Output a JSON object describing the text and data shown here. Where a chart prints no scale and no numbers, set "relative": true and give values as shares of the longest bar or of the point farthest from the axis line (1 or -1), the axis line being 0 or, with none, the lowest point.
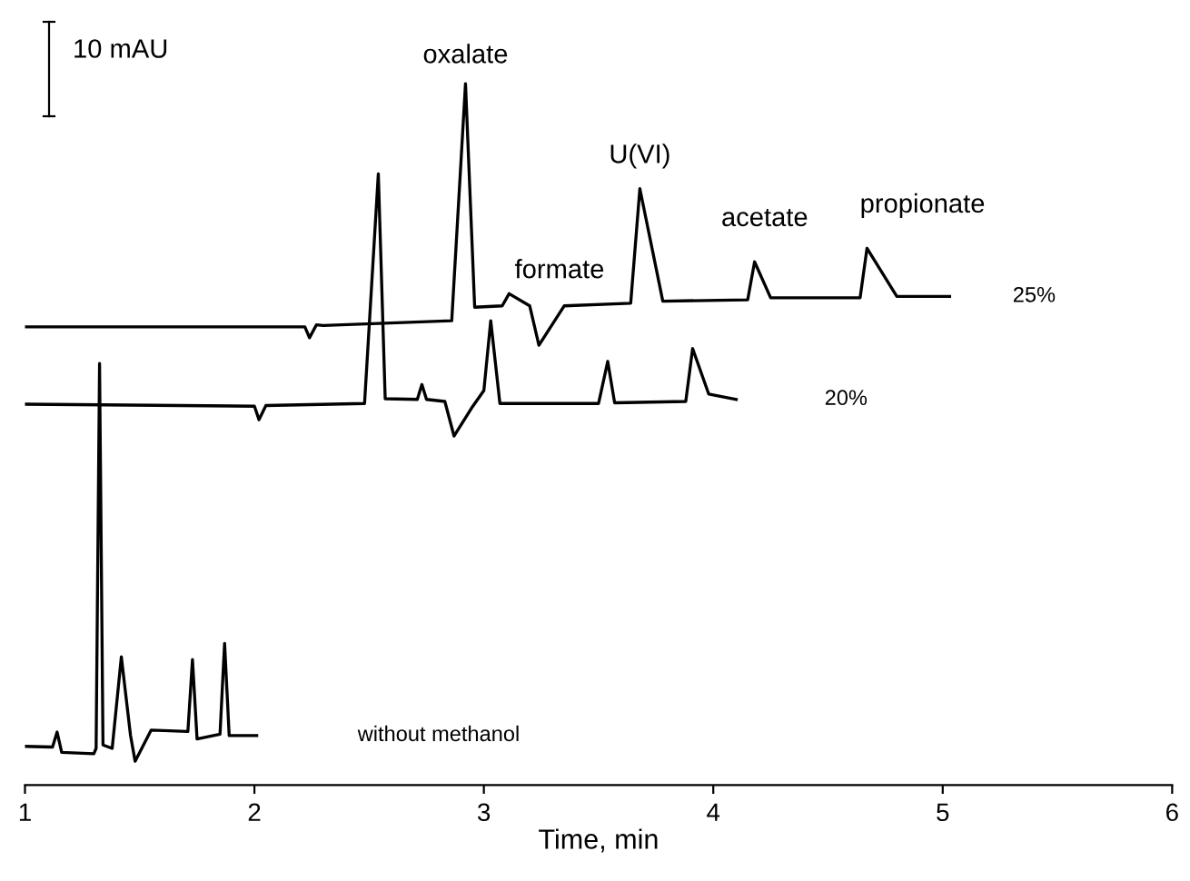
{
  "chart_data": {
    "type": "line",
    "relative": true,
    "xlabel": "Time, min",
    "xlim": [
      1,
      6
    ],
    "xticks": [
      1,
      2,
      3,
      4,
      5,
      6
    ],
    "tick_labels": "x",
    "grid": false,
    "legend": false,
    "marker": "none",
    "line_style": "solid",
    "series": [
      {
        "name": "25%",
        "color": "#000000",
        "x": [
          1.0,
          2.22,
          2.24,
          2.27,
          2.3,
          2.86,
          2.92,
          2.96,
          3.08,
          3.11,
          3.2,
          3.24,
          3.35,
          3.64,
          3.68,
          3.78,
          4.15,
          4.18,
          4.25,
          4.64,
          4.67,
          4.8,
          5.03
        ],
        "values": [
          0.641,
          0.641,
          0.625,
          0.644,
          0.643,
          0.65,
          1,
          0.67,
          0.672,
          0.69,
          0.672,
          0.614,
          0.672,
          0.676,
          0.845,
          0.679,
          0.681,
          0.737,
          0.684,
          0.684,
          0.757,
          0.686,
          0.686
        ]
      },
      {
        "name": "20%",
        "color": "#000000",
        "x": [
          1.0,
          2.0,
          2.02,
          2.05,
          2.48,
          2.54,
          2.57,
          2.71,
          2.73,
          2.75,
          2.83,
          2.87,
          2.95,
          3.0,
          3.03,
          3.07,
          3.5,
          3.54,
          3.57,
          3.88,
          3.91,
          3.98,
          4.1
        ],
        "values": [
          0.527,
          0.524,
          0.504,
          0.525,
          0.528,
          0.867,
          0.535,
          0.534,
          0.556,
          0.534,
          0.531,
          0.48,
          0.523,
          0.547,
          0.65,
          0.528,
          0.528,
          0.59,
          0.529,
          0.531,
          0.609,
          0.542,
          0.534
        ]
      },
      {
        "name": "without methanol",
        "color": "#000000",
        "x": [
          1.0,
          1.12,
          1.14,
          1.16,
          1.3,
          1.31,
          1.325,
          1.34,
          1.38,
          1.42,
          1.46,
          1.48,
          1.55,
          1.71,
          1.73,
          1.75,
          1.85,
          1.87,
          1.89,
          2.01
        ],
        "values": [
          0.022,
          0.021,
          0.043,
          0.013,
          0.011,
          0.019,
          0.587,
          0.024,
          0.019,
          0.154,
          0.038,
          0.0,
          0.046,
          0.044,
          0.15,
          0.033,
          0.04,
          0.174,
          0.038,
          0.038
        ]
      }
    ],
    "annotations": [
      "10 mAU",
      {
        "text": "oxalate",
        "x": 2.92,
        "y": 1
      },
      {
        "text": "formate",
        "x": 3.11,
        "y": 0.69
      },
      {
        "text": "U(VI)",
        "x": 3.68,
        "y": 0.845
      },
      {
        "text": "acetate",
        "x": 4.18,
        "y": 0.737
      },
      {
        "text": "propionate",
        "x": 4.67,
        "y": 0.757
      }
    ]
  }
}
